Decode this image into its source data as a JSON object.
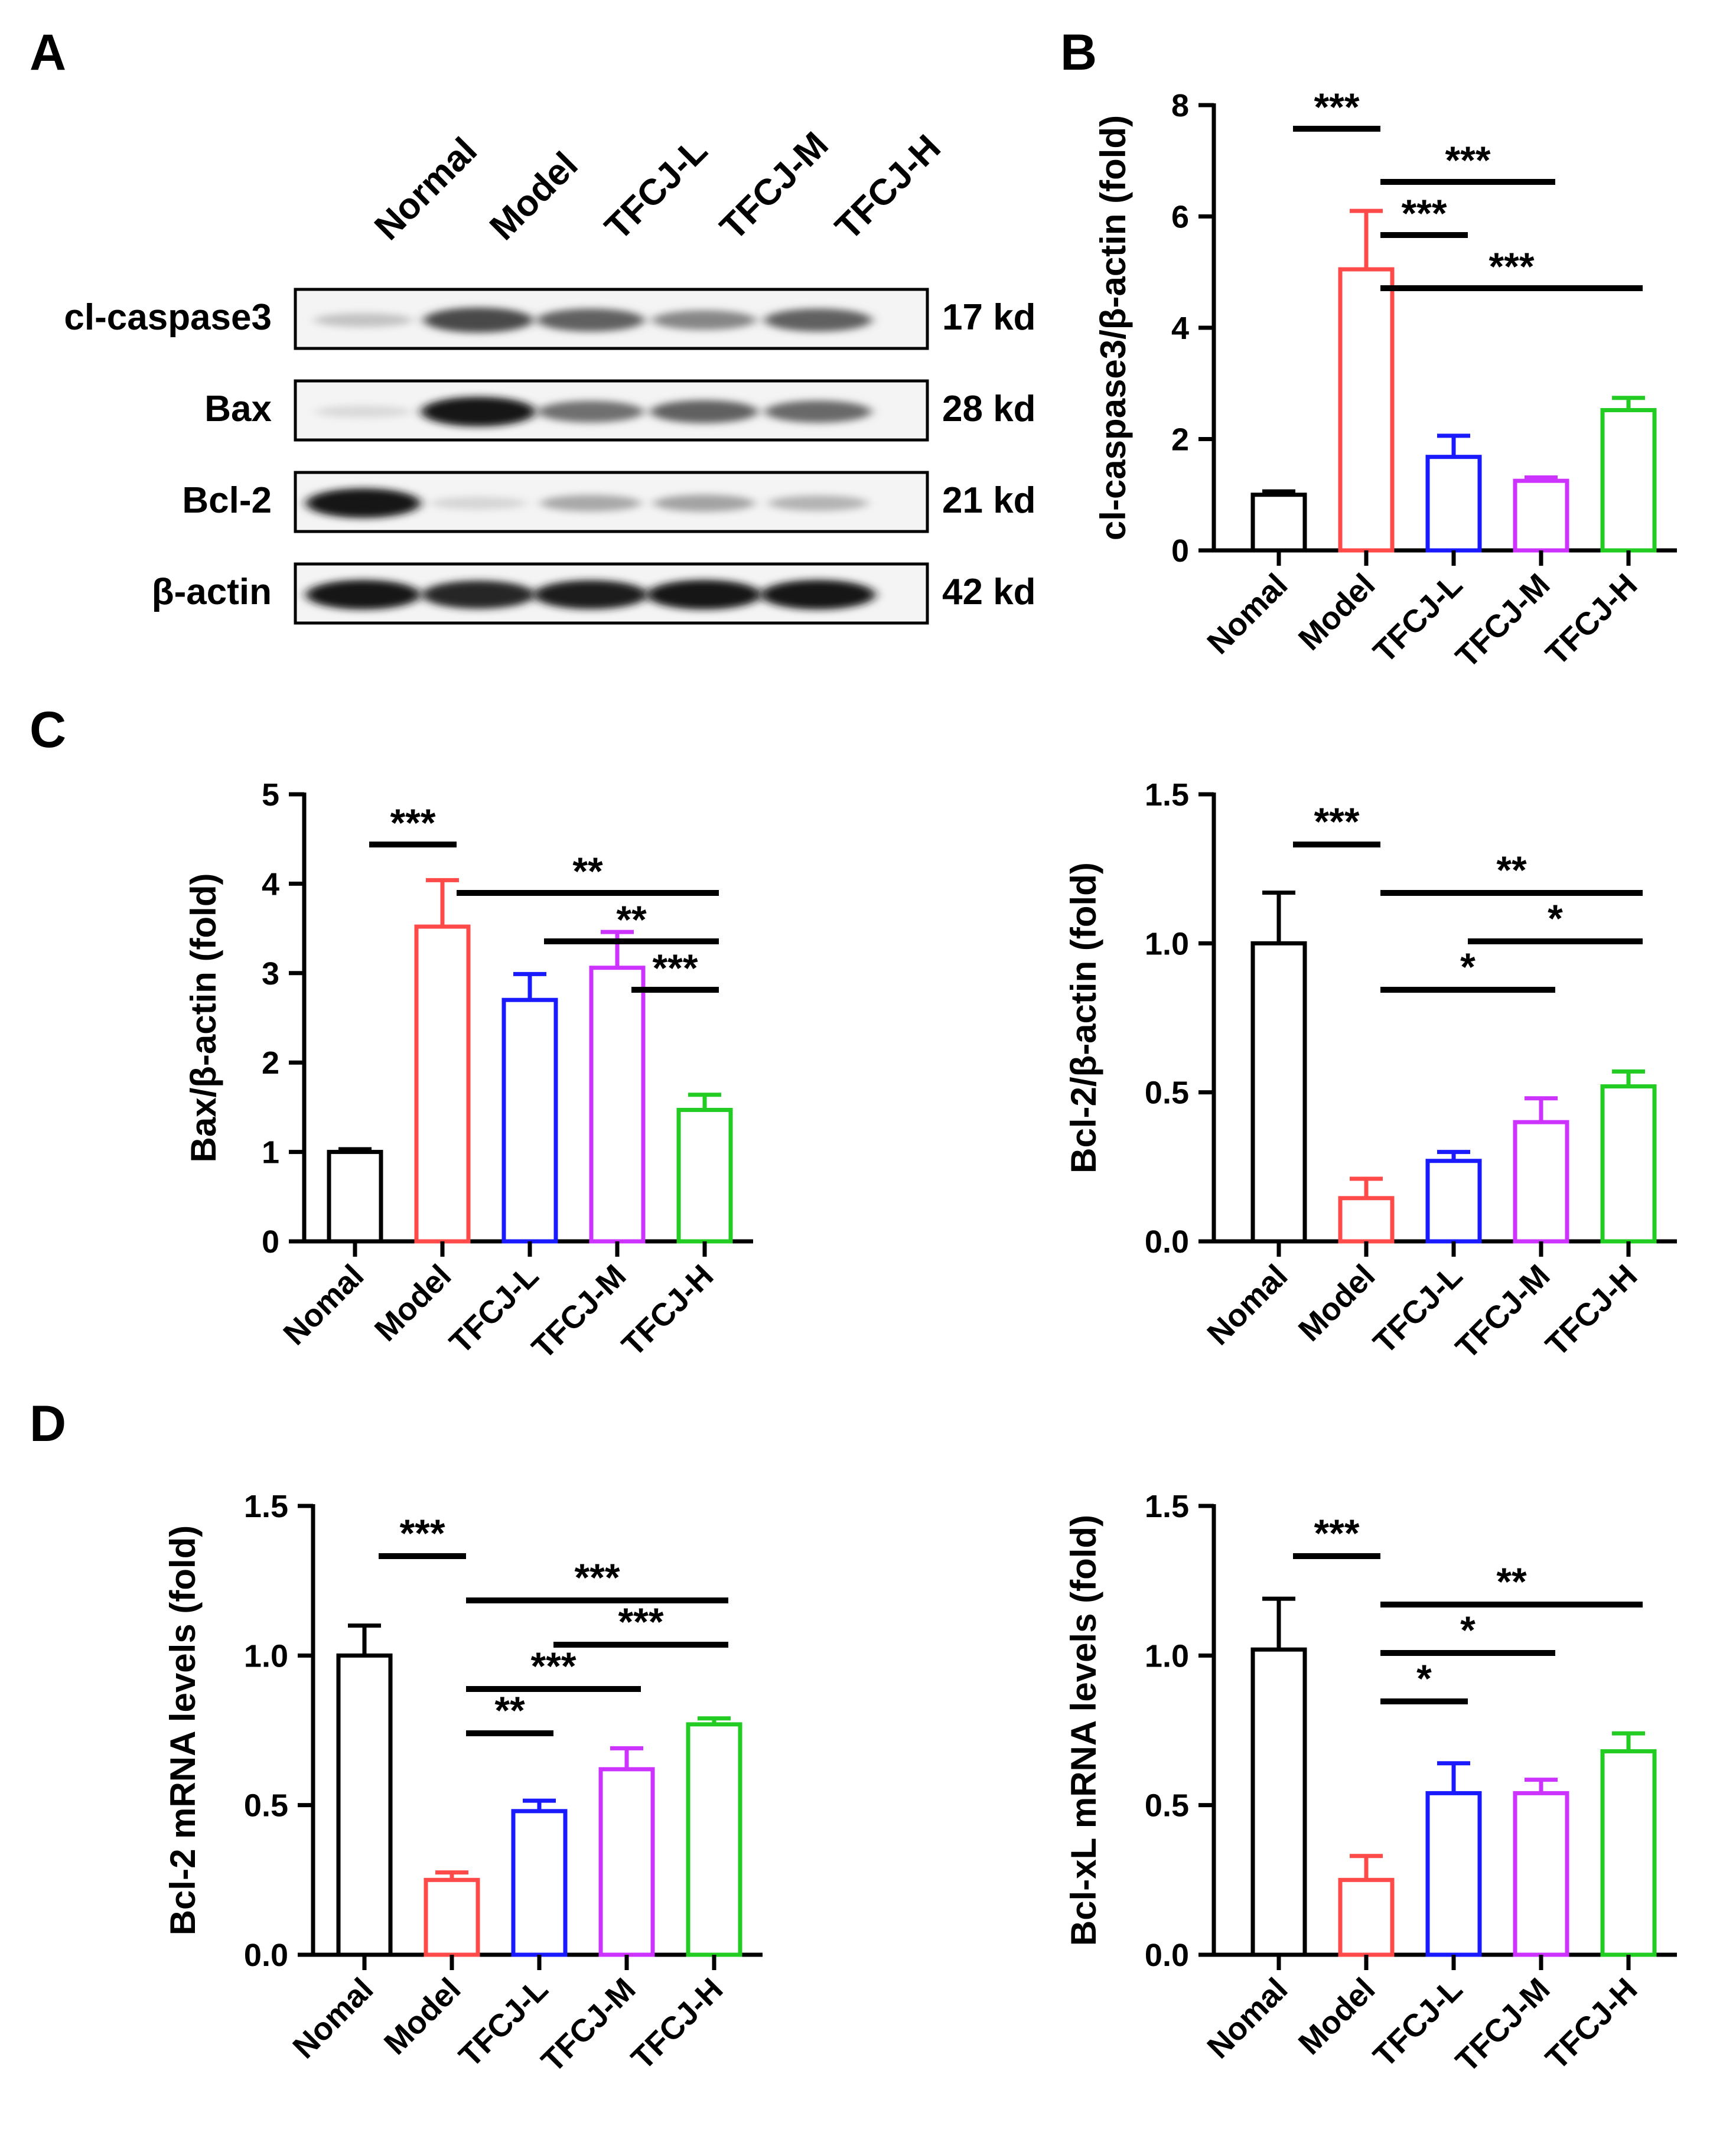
{
  "panel_labels": {
    "a": "A",
    "b": "B",
    "c": "C",
    "d": "D"
  },
  "western_blot": {
    "lanes": [
      "Normal",
      "Model",
      "TFCJ-L",
      "TFCJ-M",
      "TFCJ-H"
    ],
    "rows": [
      {
        "protein": "cl-caspase3",
        "size": "17 kd",
        "band_intensity": [
          0.18,
          0.72,
          0.62,
          0.45,
          0.62
        ]
      },
      {
        "protein": "Bax",
        "size": "28 kd",
        "band_intensity": [
          0.08,
          0.95,
          0.55,
          0.62,
          0.58
        ]
      },
      {
        "protein": "Bcl-2",
        "size": "21 kd",
        "band_intensity": [
          0.95,
          0.1,
          0.3,
          0.32,
          0.25
        ]
      },
      {
        "protein": "β-actin",
        "size": "42 kd",
        "band_intensity": [
          0.95,
          0.88,
          0.92,
          0.95,
          0.95
        ]
      }
    ]
  },
  "chart_data": [
    {
      "id": "B",
      "type": "bar",
      "categories": [
        "Nomal",
        "Model",
        "TFCJ-L",
        "TFCJ-M",
        "TFCJ-H"
      ],
      "values": [
        1.0,
        5.05,
        1.68,
        1.25,
        2.52
      ],
      "errors": [
        0.06,
        1.05,
        0.38,
        0.06,
        0.22
      ],
      "colors": [
        "#000000",
        "#ff4a4a",
        "#1a1aff",
        "#cc33ff",
        "#22cc22"
      ],
      "ylabel": "cl-caspase3/β-actin (fold)",
      "ylim": [
        0,
        8
      ],
      "yticks": [
        0,
        2,
        4,
        6,
        8
      ],
      "tick_labels": [
        "0",
        "2",
        "4",
        "6",
        "8"
      ],
      "annotations": [
        {
          "from": 0,
          "to": 1,
          "stars": "***"
        },
        {
          "from": 1,
          "to": 3,
          "stars": "***"
        },
        {
          "from": 1,
          "to": 2,
          "stars": "***"
        },
        {
          "from": 1,
          "to": 4,
          "stars": "***"
        }
      ]
    },
    {
      "id": "C-left",
      "type": "bar",
      "categories": [
        "Nomal",
        "Model",
        "TFCJ-L",
        "TFCJ-M",
        "TFCJ-H"
      ],
      "values": [
        1.0,
        3.52,
        2.7,
        3.06,
        1.47
      ],
      "errors": [
        0.03,
        0.52,
        0.29,
        0.4,
        0.17
      ],
      "colors": [
        "#000000",
        "#ff4a4a",
        "#1a1aff",
        "#cc33ff",
        "#22cc22"
      ],
      "ylabel": "Bax/β-actin (fold)",
      "ylim": [
        0,
        5
      ],
      "yticks": [
        0,
        1,
        2,
        3,
        4,
        5
      ],
      "tick_labels": [
        "0",
        "1",
        "2",
        "3",
        "4",
        "5"
      ],
      "annotations": [
        {
          "from": 0,
          "to": 1,
          "stars": "***"
        },
        {
          "from": 1,
          "to": 4,
          "stars": "**"
        },
        {
          "from": 2,
          "to": 4,
          "stars": "**"
        },
        {
          "from": 3,
          "to": 4,
          "stars": "***"
        }
      ]
    },
    {
      "id": "C-right",
      "type": "bar",
      "categories": [
        "Nomal",
        "Model",
        "TFCJ-L",
        "TFCJ-M",
        "TFCJ-H"
      ],
      "values": [
        1.0,
        0.145,
        0.27,
        0.4,
        0.52
      ],
      "errors": [
        0.17,
        0.065,
        0.03,
        0.08,
        0.05
      ],
      "colors": [
        "#000000",
        "#ff4a4a",
        "#1a1aff",
        "#cc33ff",
        "#22cc22"
      ],
      "ylabel": "Bcl-2/β-actin (fold)",
      "ylim": [
        0,
        1.5
      ],
      "yticks": [
        0,
        0.5,
        1.0,
        1.5
      ],
      "tick_labels": [
        "0.0",
        "0.5",
        "1.0",
        "1.5"
      ],
      "annotations": [
        {
          "from": 0,
          "to": 1,
          "stars": "***"
        },
        {
          "from": 1,
          "to": 4,
          "stars": "**"
        },
        {
          "from": 2,
          "to": 4,
          "stars": "*"
        },
        {
          "from": 1,
          "to": 3,
          "stars": "*"
        }
      ]
    },
    {
      "id": "D-left",
      "type": "bar",
      "categories": [
        "Nomal",
        "Model",
        "TFCJ-L",
        "TFCJ-M",
        "TFCJ-H"
      ],
      "values": [
        1.0,
        0.25,
        0.48,
        0.62,
        0.77
      ],
      "errors": [
        0.1,
        0.025,
        0.035,
        0.07,
        0.02
      ],
      "colors": [
        "#000000",
        "#ff4a4a",
        "#1a1aff",
        "#cc33ff",
        "#22cc22"
      ],
      "ylabel": "Bcl-2 mRNA levels (fold)",
      "ylim": [
        0,
        1.5
      ],
      "yticks": [
        0,
        0.5,
        1.0,
        1.5
      ],
      "tick_labels": [
        "0.0",
        "0.5",
        "1.0",
        "1.5"
      ],
      "annotations": [
        {
          "from": 0,
          "to": 1,
          "stars": "***"
        },
        {
          "from": 1,
          "to": 4,
          "stars": "***"
        },
        {
          "from": 2,
          "to": 4,
          "stars": "***"
        },
        {
          "from": 1,
          "to": 3,
          "stars": "***"
        },
        {
          "from": 1,
          "to": 2,
          "stars": "**"
        }
      ]
    },
    {
      "id": "D-right",
      "type": "bar",
      "categories": [
        "Nomal",
        "Model",
        "TFCJ-L",
        "TFCJ-M",
        "TFCJ-H"
      ],
      "values": [
        1.02,
        0.25,
        0.54,
        0.54,
        0.68
      ],
      "errors": [
        0.17,
        0.08,
        0.1,
        0.045,
        0.06
      ],
      "colors": [
        "#000000",
        "#ff4a4a",
        "#1a1aff",
        "#cc33ff",
        "#22cc22"
      ],
      "ylabel": "Bcl-xL mRNA levels (fold)",
      "ylim": [
        0,
        1.5
      ],
      "yticks": [
        0,
        0.5,
        1.0,
        1.5
      ],
      "tick_labels": [
        "0.0",
        "0.5",
        "1.0",
        "1.5"
      ],
      "annotations": [
        {
          "from": 0,
          "to": 1,
          "stars": "***"
        },
        {
          "from": 1,
          "to": 4,
          "stars": "**"
        },
        {
          "from": 1,
          "to": 3,
          "stars": "*"
        },
        {
          "from": 1,
          "to": 2,
          "stars": "*"
        }
      ]
    }
  ]
}
